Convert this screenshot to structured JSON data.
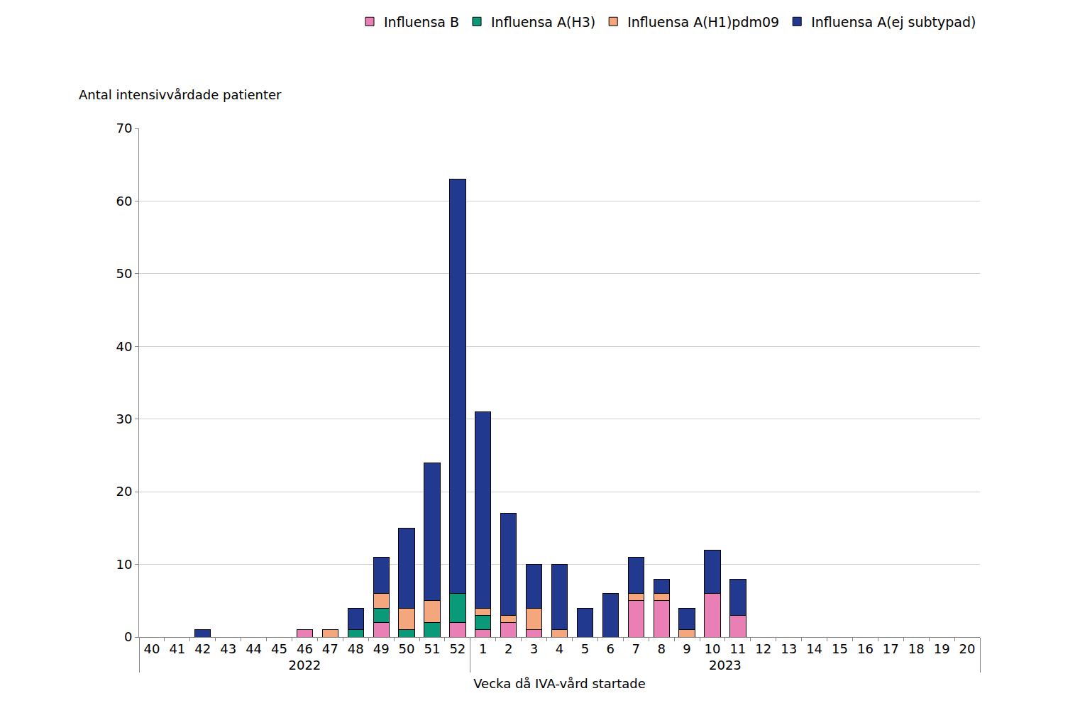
{
  "chart_data": {
    "type": "bar",
    "stacked": true,
    "grid": true,
    "legend": "top",
    "x_label": "Vecka då IVA-vård startade",
    "y_label": "Antal intensivvårdade patienter",
    "categories": [
      "40",
      "41",
      "42",
      "43",
      "44",
      "45",
      "46",
      "47",
      "48",
      "49",
      "50",
      "51",
      "52",
      "1",
      "2",
      "3",
      "4",
      "5",
      "6",
      "7",
      "8",
      "9",
      "10",
      "11",
      "12",
      "13",
      "14",
      "15",
      "16",
      "17",
      "18",
      "19",
      "20"
    ],
    "category_groups": [
      "2022",
      "2022",
      "2022",
      "2022",
      "2022",
      "2022",
      "2022",
      "2022",
      "2022",
      "2022",
      "2022",
      "2022",
      "2022",
      "2023",
      "2023",
      "2023",
      "2023",
      "2023",
      "2023",
      "2023",
      "2023",
      "2023",
      "2023",
      "2023",
      "2023",
      "2023",
      "2023",
      "2023",
      "2023",
      "2023",
      "2023",
      "2023",
      "2023"
    ],
    "ylim": [
      0,
      70
    ],
    "yticks": [
      0,
      10,
      20,
      30,
      40,
      50,
      60,
      70
    ],
    "series": [
      {
        "name": "Influensa B",
        "color": "#e97fb4",
        "values": [
          0,
          0,
          0,
          0,
          0,
          0,
          1,
          0,
          0,
          2,
          0,
          0,
          2,
          1,
          2,
          1,
          0,
          0,
          0,
          5,
          5,
          0,
          6,
          3,
          null,
          null,
          null,
          null,
          null,
          null,
          null,
          null,
          null
        ]
      },
      {
        "name": "Influensa A(H3)",
        "color": "#0a9a7a",
        "values": [
          0,
          0,
          0,
          0,
          0,
          0,
          0,
          0,
          1,
          2,
          1,
          2,
          4,
          2,
          0,
          0,
          0,
          0,
          0,
          0,
          0,
          0,
          0,
          0,
          null,
          null,
          null,
          null,
          null,
          null,
          null,
          null,
          null
        ]
      },
      {
        "name": "Influensa A(H1)pdm09",
        "color": "#f4a77c",
        "values": [
          0,
          0,
          0,
          0,
          0,
          0,
          0,
          1,
          0,
          2,
          3,
          3,
          0,
          1,
          1,
          3,
          1,
          0,
          0,
          1,
          1,
          1,
          0,
          0,
          null,
          null,
          null,
          null,
          null,
          null,
          null,
          null,
          null
        ]
      },
      {
        "name": "Influensa A(ej subtypad)",
        "color": "#213a8f",
        "values": [
          0,
          0,
          1,
          0,
          0,
          0,
          0,
          0,
          3,
          5,
          11,
          19,
          57,
          27,
          14,
          6,
          9,
          4,
          6,
          5,
          2,
          3,
          6,
          5,
          null,
          null,
          null,
          null,
          null,
          null,
          null,
          null,
          null
        ]
      }
    ]
  }
}
